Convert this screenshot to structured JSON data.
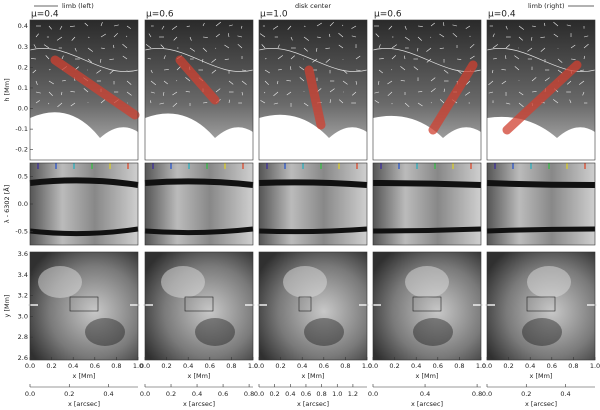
{
  "header": {
    "limb_left": "limb (left)",
    "disk_center": "disk center",
    "limb_right": "limb (right)"
  },
  "panels": [
    {
      "title": "μ=0.4",
      "arcsec_lim": [
        0,
        0.55
      ],
      "arcsec_ticks": [
        {
          "value": 0,
          "label": "0.0"
        },
        0.2,
        0.4
      ]
    },
    {
      "title": "μ=0.6",
      "arcsec_lim": [
        0,
        0.83
      ],
      "arcsec_ticks": [
        {
          "value": 0,
          "label": "0.0"
        },
        0.2,
        0.4,
        0.6,
        0.8
      ]
    },
    {
      "title": "μ=1.0",
      "arcsec_lim": [
        0,
        1.38
      ],
      "arcsec_ticks": [
        {
          "value": 0,
          "label": "0.0"
        },
        0.2,
        0.4,
        0.6,
        0.8,
        {
          "value": 1,
          "label": "1.0"
        },
        1.2
      ]
    },
    {
      "title": "μ=0.6",
      "arcsec_lim": [
        0,
        0.83
      ],
      "arcsec_ticks": [
        {
          "value": 0,
          "label": "0.0"
        },
        0.4,
        0.8
      ]
    },
    {
      "title": "μ=0.4",
      "arcsec_lim": [
        0,
        0.55
      ],
      "arcsec_ticks": [
        {
          "value": 0,
          "label": "0.0"
        },
        0.2,
        0.4
      ]
    }
  ],
  "rows": [
    {
      "label": "h [Mm]",
      "ylim": [
        -0.25,
        0.43
      ],
      "yticks": [
        0.4,
        0.3,
        0.2,
        0.1,
        {
          "value": 0,
          "label": "0.0"
        },
        -0.1,
        -0.2
      ]
    },
    {
      "label": "λ - 6302 [Å]",
      "ylim": [
        -0.75,
        0.75
      ],
      "yticks": [
        0.5,
        {
          "value": 0,
          "label": "0.0"
        },
        -0.5
      ]
    },
    {
      "label": "y [Mm]",
      "ylim": [
        2.58,
        3.62
      ],
      "yticks": [
        3.6,
        3.4,
        3.2,
        {
          "value": 3,
          "label": "3.0"
        },
        2.8,
        2.6
      ]
    }
  ],
  "x_axis": {
    "label": "x [Mm]",
    "xlim": [
      0,
      1
    ],
    "xticks": [
      {
        "value": 0,
        "label": "0.0"
      },
      0.2,
      0.4,
      0.6,
      0.8,
      {
        "value": 1,
        "label": "1.0"
      }
    ]
  },
  "arcsec_axis": {
    "label": "x [arcsec]"
  }
}
